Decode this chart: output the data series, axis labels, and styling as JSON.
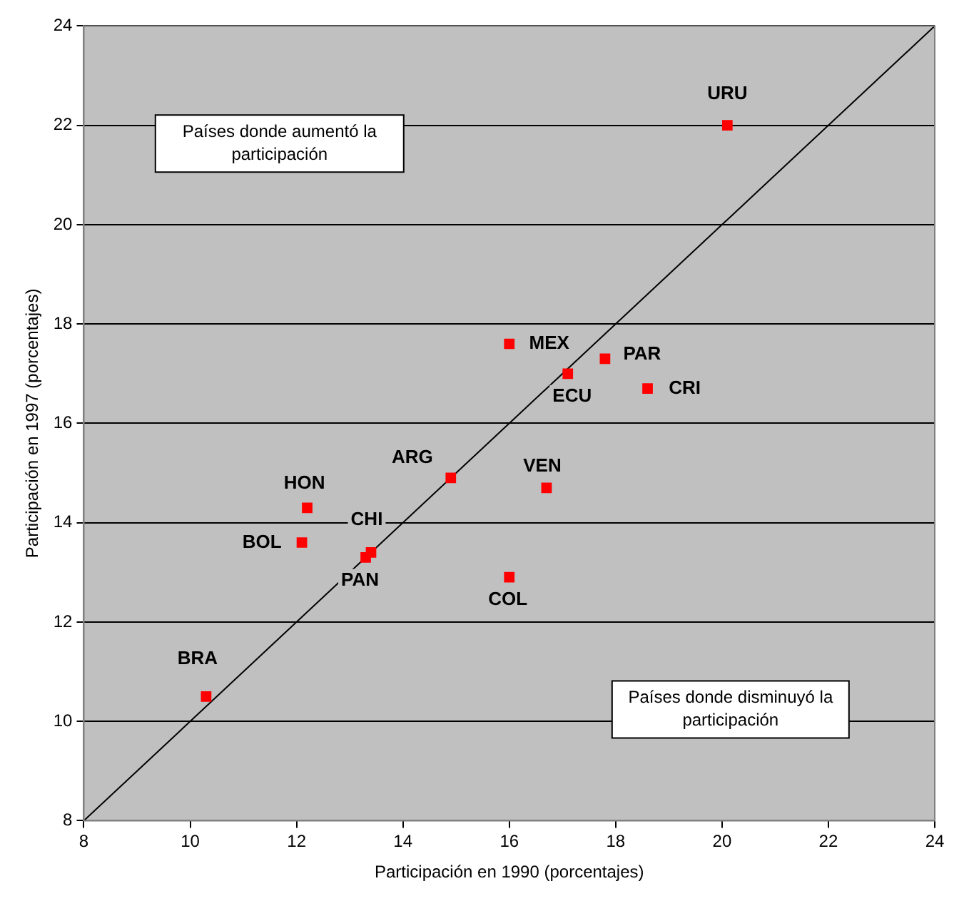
{
  "chart_data": {
    "type": "scatter",
    "xlabel": "Participación en 1990 (porcentajes)",
    "ylabel": "Participación en 1997 (porcentajes)",
    "xlim": [
      8,
      24
    ],
    "xticks": [
      8,
      10,
      12,
      14,
      16,
      18,
      20,
      22,
      24
    ],
    "ylim": [
      8,
      24
    ],
    "yticks": [
      8,
      10,
      12,
      14,
      16,
      18,
      20,
      22,
      24
    ],
    "grid": "y",
    "legend": false,
    "marker": "square",
    "series": [
      {
        "color": "#ff0000",
        "x": [
          20.1,
          16.0,
          17.8,
          17.1,
          18.6,
          14.9,
          16.7,
          12.2,
          12.1,
          13.4,
          13.3,
          16.0,
          10.3
        ],
        "values": [
          22.0,
          17.6,
          17.3,
          17.0,
          16.7,
          14.9,
          14.7,
          14.3,
          13.6,
          13.4,
          13.3,
          12.9,
          10.5
        ]
      },
      {
        "type": "line",
        "color": "#000000",
        "x": [
          8,
          24
        ],
        "values": [
          8,
          24
        ],
        "marker": "none"
      }
    ],
    "annotations": [
      {
        "text": "URU",
        "x": 20.1,
        "y": 22.0
      },
      {
        "text": "MEX",
        "x": 16.0,
        "y": 17.6
      },
      {
        "text": "PAR",
        "x": 17.8,
        "y": 17.3
      },
      {
        "text": "ECU",
        "x": 17.1,
        "y": 17.0
      },
      {
        "text": "CRI",
        "x": 18.6,
        "y": 16.7
      },
      {
        "text": "ARG",
        "x": 14.9,
        "y": 14.9
      },
      {
        "text": "VEN",
        "x": 16.7,
        "y": 14.7
      },
      {
        "text": "HON",
        "x": 12.2,
        "y": 14.3
      },
      {
        "text": "BOL",
        "x": 12.1,
        "y": 13.6
      },
      {
        "text": "CHI",
        "x": 13.4,
        "y": 13.4
      },
      {
        "text": "PAN",
        "x": 13.3,
        "y": 13.3
      },
      {
        "text": "COL",
        "x": 16.0,
        "y": 12.9
      },
      {
        "text": "BRA",
        "x": 10.3,
        "y": 10.5
      },
      "Países donde aumentó la participación",
      "Países donde disminuyó la participación"
    ]
  }
}
